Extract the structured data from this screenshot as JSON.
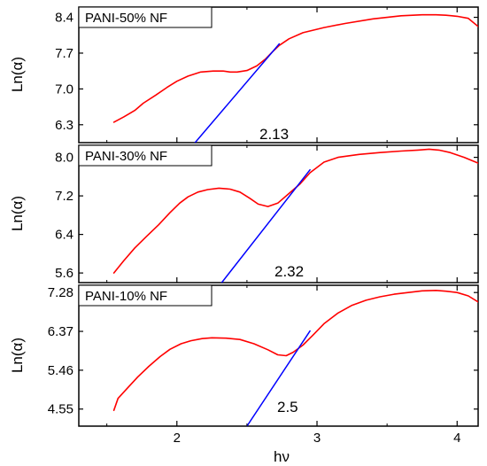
{
  "chart_data": [
    {
      "type": "line",
      "label": "PANI-50% NF",
      "xlabel": "hν",
      "ylabel": "Ln(α)",
      "xlim": [
        1.3,
        4.15
      ],
      "ylim": [
        5.95,
        8.6
      ],
      "yticks": [
        6.3,
        7.0,
        7.7,
        8.4
      ],
      "ytick_labels": [
        "6.3",
        "7.0",
        "7.7",
        "8.4"
      ],
      "series": [
        {
          "color": "#ff0000",
          "x": [
            1.55,
            1.62,
            1.7,
            1.76,
            1.85,
            1.93,
            2.0,
            2.08,
            2.17,
            2.26,
            2.33,
            2.38,
            2.43,
            2.5,
            2.57,
            2.63,
            2.68,
            2.73,
            2.8,
            2.9,
            3.05,
            3.2,
            3.4,
            3.6,
            3.75,
            3.85,
            3.92,
            4.0,
            4.08,
            4.15
          ],
          "y": [
            6.35,
            6.45,
            6.58,
            6.72,
            6.88,
            7.03,
            7.15,
            7.25,
            7.33,
            7.35,
            7.35,
            7.33,
            7.33,
            7.36,
            7.45,
            7.58,
            7.72,
            7.85,
            7.98,
            8.1,
            8.2,
            8.28,
            8.37,
            8.43,
            8.45,
            8.45,
            8.44,
            8.42,
            8.38,
            8.22
          ]
        },
        {
          "color": "#0000ff",
          "x": [
            2.13,
            2.73
          ],
          "y": [
            5.95,
            7.88
          ]
        }
      ],
      "annotation": "2.13"
    },
    {
      "type": "line",
      "label": "PANI-30% NF",
      "xlabel": "hν",
      "ylabel": "Ln(α)",
      "xlim": [
        1.3,
        4.15
      ],
      "ylim": [
        5.4,
        8.25
      ],
      "yticks": [
        5.6,
        6.4,
        7.2,
        8.0
      ],
      "ytick_labels": [
        "5.6",
        "6.4",
        "7.2",
        "8.0"
      ],
      "series": [
        {
          "color": "#ff0000",
          "x": [
            1.55,
            1.62,
            1.7,
            1.78,
            1.87,
            1.95,
            2.02,
            2.08,
            2.15,
            2.22,
            2.3,
            2.38,
            2.45,
            2.52,
            2.58,
            2.65,
            2.72,
            2.8,
            2.88,
            2.95,
            3.05,
            3.15,
            3.3,
            3.45,
            3.6,
            3.72,
            3.8,
            3.87,
            3.95,
            4.05,
            4.15
          ],
          "y": [
            5.6,
            5.85,
            6.12,
            6.35,
            6.6,
            6.85,
            7.05,
            7.18,
            7.28,
            7.33,
            7.36,
            7.34,
            7.28,
            7.15,
            7.03,
            6.98,
            7.05,
            7.25,
            7.45,
            7.68,
            7.9,
            8.0,
            8.06,
            8.1,
            8.13,
            8.15,
            8.17,
            8.15,
            8.1,
            8.0,
            7.88
          ]
        },
        {
          "color": "#0000ff",
          "x": [
            2.32,
            2.95
          ],
          "y": [
            5.4,
            7.74
          ]
        }
      ],
      "annotation": "2.32"
    },
    {
      "type": "line",
      "label": "PANI-10% NF",
      "xlabel": "hν",
      "ylabel": "Ln(α)",
      "xlim": [
        1.3,
        4.15
      ],
      "ylim": [
        4.15,
        7.45
      ],
      "yticks": [
        4.55,
        5.46,
        6.37,
        7.28
      ],
      "ytick_labels": [
        "4.55",
        "5.46",
        "6.37",
        "7.28"
      ],
      "series": [
        {
          "color": "#ff0000",
          "x": [
            1.55,
            1.58,
            1.65,
            1.72,
            1.8,
            1.88,
            1.95,
            2.03,
            2.1,
            2.18,
            2.25,
            2.35,
            2.45,
            2.55,
            2.65,
            2.72,
            2.78,
            2.83,
            2.9,
            2.97,
            3.05,
            3.15,
            3.25,
            3.35,
            3.45,
            3.55,
            3.65,
            3.75,
            3.85,
            3.92,
            4.0,
            4.08,
            4.15
          ],
          "y": [
            4.52,
            4.8,
            5.05,
            5.3,
            5.55,
            5.78,
            5.95,
            6.08,
            6.15,
            6.2,
            6.22,
            6.21,
            6.18,
            6.08,
            5.94,
            5.82,
            5.8,
            5.88,
            6.05,
            6.28,
            6.55,
            6.8,
            6.98,
            7.1,
            7.18,
            7.24,
            7.28,
            7.32,
            7.33,
            7.31,
            7.28,
            7.2,
            7.06
          ]
        },
        {
          "color": "#0000ff",
          "x": [
            2.5,
            2.95
          ],
          "y": [
            4.15,
            6.38
          ]
        }
      ],
      "annotation": "2.5"
    }
  ],
  "x_axis": {
    "title": "hν",
    "ticks": [
      2,
      3,
      4
    ],
    "tick_labels": [
      "2",
      "3",
      "4"
    ]
  }
}
